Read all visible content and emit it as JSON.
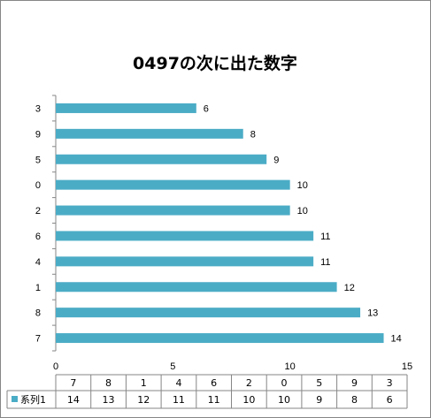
{
  "chart_data": {
    "type": "bar",
    "orientation": "horizontal",
    "title": "0497の次に出た数字",
    "categories": [
      "7",
      "8",
      "1",
      "4",
      "6",
      "2",
      "0",
      "5",
      "9",
      "3"
    ],
    "series": [
      {
        "name": "系列1",
        "values": [
          14,
          13,
          12,
          11,
          11,
          10,
          10,
          9,
          8,
          6
        ]
      }
    ],
    "xlim": [
      0,
      15
    ],
    "x_ticks": [
      0,
      5,
      10,
      15
    ],
    "grid": false,
    "data_labels": true,
    "data_table": true,
    "colors": {
      "bar": "#4BACC6",
      "frame": "#868686",
      "axis": "#868686"
    }
  }
}
